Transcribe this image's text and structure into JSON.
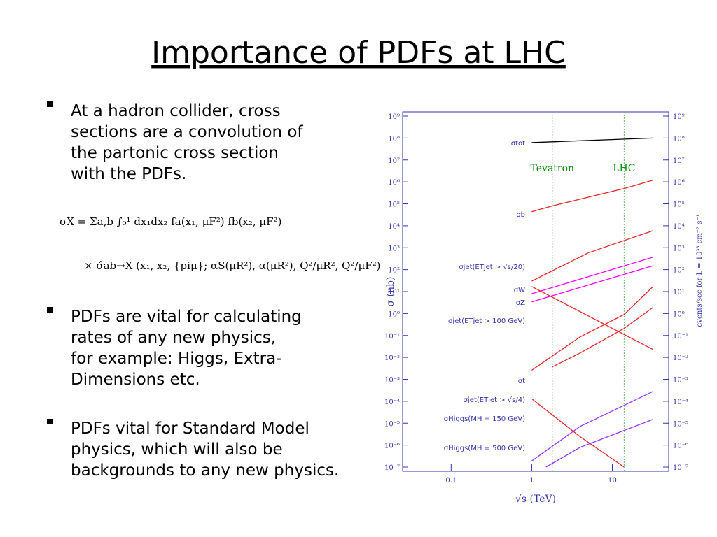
{
  "title": "Importance of PDFs at LHC",
  "bullets": [
    [
      "At a hadron collider, cross",
      "sections are a convolution of",
      "the partonic cross section",
      "with the PDFs."
    ],
    [
      "PDFs are vital for calculating",
      "rates  of any new physics,",
      "for example: Higgs, Extra-",
      "Dimensions etc."
    ],
    [
      "PDFs vital for Standard Model",
      "physics, which will also be",
      "backgrounds to any new physics."
    ]
  ],
  "equation": [
    "σX  =  Σa,b ∫₀¹ dx₁dx₂ fa(x₁, μF²) fb(x₂, μF²)",
    "×  σ̂ab→X (x₁, x₂, {piμ}; αS(μR²), α(μR²), Q²/μR², Q²/μF²)"
  ],
  "chart_data": {
    "type": "line",
    "xlabel": "√s  (TeV)",
    "ylabel": "σ  (nb)",
    "y2label": "events/sec for  L = 10³³ cm⁻² s⁻¹",
    "xlog": true,
    "ylog": true,
    "xlim": [
      0.025,
      50
    ],
    "xticks": [
      0.1,
      1,
      10
    ],
    "ylim": [
      1e-07,
      1000000000.0
    ],
    "yticks": [
      {
        "value": 1000000000.0,
        "label": "10⁹"
      },
      {
        "value": 100000000.0,
        "label": "10⁸"
      },
      {
        "value": 10000000.0,
        "label": "10⁷"
      },
      {
        "value": 1000000.0,
        "label": "10⁶"
      },
      {
        "value": 100000.0,
        "label": "10⁵"
      },
      {
        "value": 10000.0,
        "label": "10⁴"
      },
      {
        "value": 1000.0,
        "label": "10³"
      },
      {
        "value": 100.0,
        "label": "10²"
      },
      {
        "value": 10.0,
        "label": "10¹"
      },
      {
        "value": 1,
        "label": "10⁰"
      },
      {
        "value": 0.1,
        "label": "10⁻¹"
      },
      {
        "value": 0.01,
        "label": "10⁻²"
      },
      {
        "value": 0.001,
        "label": "10⁻³"
      },
      {
        "value": 0.0001,
        "label": "10⁻⁴"
      },
      {
        "value": 1e-05,
        "label": "10⁻⁵"
      },
      {
        "value": 1e-06,
        "label": "10⁻⁶"
      },
      {
        "value": 1e-07,
        "label": "10⁻⁷"
      }
    ],
    "y2lim": [
      1e-07,
      1000000000.0
    ],
    "y2ticks": [
      {
        "value": 1000000000.0,
        "label": "10⁹"
      },
      {
        "value": 100000000.0,
        "label": "10⁸"
      },
      {
        "value": 10000000.0,
        "label": "10⁷"
      },
      {
        "value": 1000000.0,
        "label": "10⁶"
      },
      {
        "value": 100000.0,
        "label": "10⁵"
      },
      {
        "value": 10000.0,
        "label": "10⁴"
      },
      {
        "value": 1000.0,
        "label": "10³"
      },
      {
        "value": 100.0,
        "label": "10²"
      },
      {
        "value": 10.0,
        "label": "10¹"
      },
      {
        "value": 1,
        "label": "10⁰"
      },
      {
        "value": 0.1,
        "label": "10⁻¹"
      },
      {
        "value": 0.01,
        "label": "10⁻²"
      },
      {
        "value": 0.001,
        "label": "10⁻³"
      },
      {
        "value": 0.0001,
        "label": "10⁻⁴"
      },
      {
        "value": 1e-05,
        "label": "10⁻⁵"
      },
      {
        "value": 1e-06,
        "label": "10⁻⁶"
      },
      {
        "value": 1e-07,
        "label": "10⁻⁷"
      }
    ],
    "vlines": [
      {
        "x": 1.8,
        "label": "Tevatron"
      },
      {
        "x": 14,
        "label": "LHC"
      }
    ],
    "series": [
      {
        "name": "σtot",
        "color": "#000000",
        "x": [
          1,
          32
        ],
        "values": [
          62000000.0,
          100000000.0
        ]
      },
      {
        "name": "σb",
        "color": "#e8262a",
        "x": [
          1,
          1.8,
          14,
          32
        ],
        "values": [
          44000.0,
          80000.0,
          500000.0,
          1200000.0
        ]
      },
      {
        "name": "σjet(ETjet > √s/20)",
        "color": "#e8262a",
        "x": [
          1,
          5,
          32
        ],
        "values": [
          30,
          580,
          6000
        ]
      },
      {
        "name": "σW",
        "color": "#ff00ff",
        "x": [
          1,
          32
        ],
        "values": [
          8,
          370
        ]
      },
      {
        "name": "σZ",
        "color": "#ff00ff",
        "x": [
          1,
          32
        ],
        "values": [
          3.4,
          150
        ]
      },
      {
        "name": "σjet(ETjet > 100 GeV)",
        "color": "#e8262a",
        "x": [
          1,
          4,
          14,
          32
        ],
        "values": [
          0.0026,
          0.087,
          0.9,
          17
        ]
      },
      {
        "name": "σt",
        "color": "#e8262a",
        "x": [
          1.8,
          4,
          14,
          32
        ],
        "values": [
          0.0037,
          0.016,
          0.21,
          1.9
        ]
      },
      {
        "name": "σjet(ETjet > √s/4)",
        "color": "#e8262a",
        "x": [
          1,
          4,
          14
        ],
        "values": [
          0.00013,
          2.4e-06,
          1e-07
        ]
      },
      {
        "name": "σHiggs(MH = 150 GeV)",
        "color": "#9933ff",
        "x": [
          1,
          4,
          32
        ],
        "values": [
          1.9e-07,
          7.2e-06,
          0.00028
        ]
      },
      {
        "name": "σHiggs(MH = 500 GeV)",
        "color": "#9933ff",
        "x": [
          1.5,
          4,
          32
        ],
        "values": [
          1e-07,
          8e-07,
          1.5e-05
        ]
      },
      {
        "color": "#e8262a",
        "x": [
          1,
          32
        ],
        "values": [
          17,
          0.023
        ]
      }
    ]
  }
}
